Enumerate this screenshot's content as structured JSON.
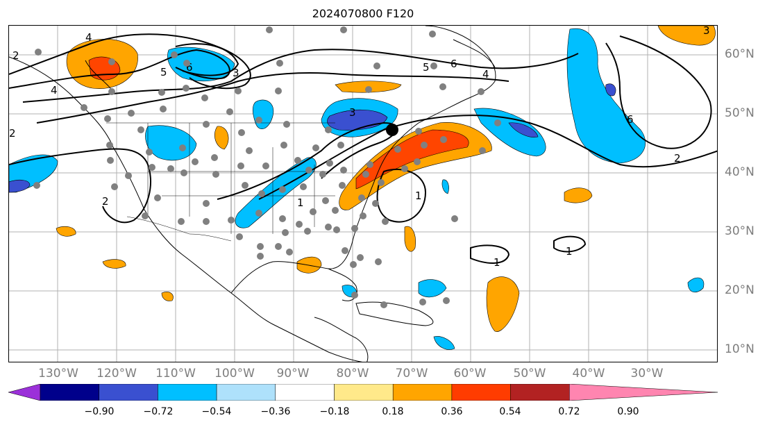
{
  "title": "2024070800 F120",
  "longitude_labels": [
    "130°W",
    "120°W",
    "110°W",
    "100°W",
    "90°W",
    "80°W",
    "70°W",
    "60°W",
    "50°W",
    "40°W",
    "30°W"
  ],
  "latitude_labels": [
    "60°N",
    "50°N",
    "40°N",
    "30°N",
    "20°N",
    "10°N"
  ],
  "colorbar": {
    "ticks": [
      "−0.90",
      "−0.72",
      "−0.54",
      "−0.36",
      "−0.18",
      "0.18",
      "0.36",
      "0.54",
      "0.72",
      "0.90"
    ],
    "colors": [
      "#9b30d9",
      "#00008b",
      "#3a50d0",
      "#00bfff",
      "#aee1fb",
      "#ffffff",
      "#ffe98a",
      "#ffa500",
      "#ff3c00",
      "#b22222",
      "#ff85b0"
    ]
  },
  "contour_labels": [
    "4",
    "5",
    "6",
    "3",
    "3",
    "4",
    "5",
    "6",
    "4",
    "2",
    "2",
    "6",
    "2",
    "1",
    "1",
    "1",
    "1",
    "3",
    "2"
  ],
  "palette": {
    "positive": [
      "#ffa500",
      "#ff4500"
    ],
    "negative": [
      "#00bfff",
      "#3a50d0"
    ],
    "stations": "#808080"
  }
}
